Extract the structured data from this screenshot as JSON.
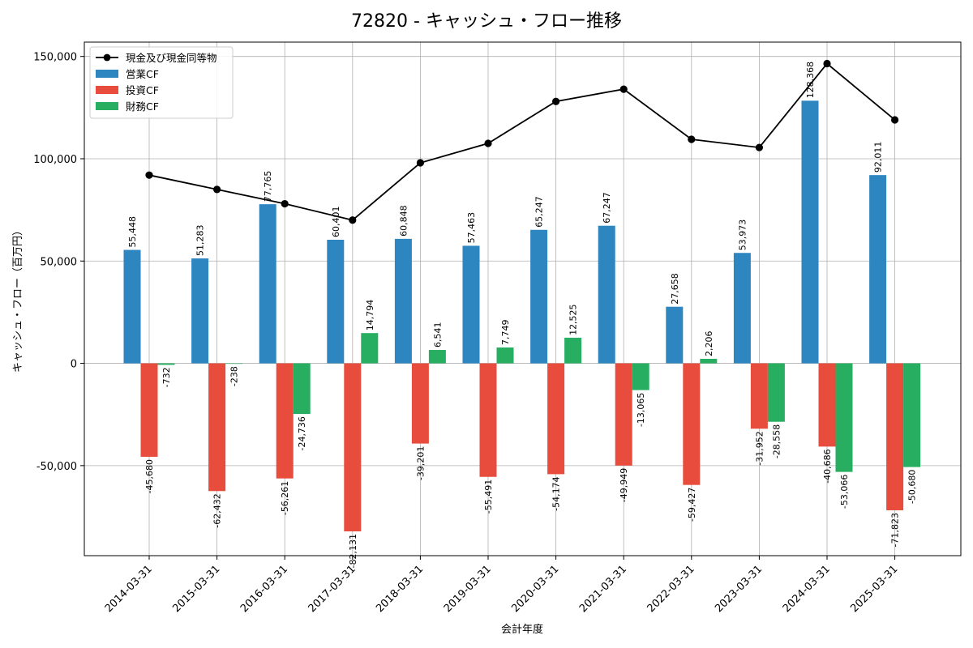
{
  "chart_data": {
    "type": "bar",
    "title": "72820 - キャッシュ・フロー推移",
    "xlabel": "会計年度",
    "ylabel": "キャッシュ・フロー（百万円）",
    "ylim": [
      -94000,
      157000
    ],
    "yticks": [
      -50000,
      0,
      50000,
      100000,
      150000
    ],
    "ytick_labels": [
      "-50,000",
      "0",
      "50,000",
      "100,000",
      "150,000"
    ],
    "grid": true,
    "legend_position": "top-left",
    "categories": [
      "2014-03-31",
      "2015-03-31",
      "2016-03-31",
      "2017-03-31",
      "2018-03-31",
      "2019-03-31",
      "2020-03-31",
      "2021-03-31",
      "2022-03-31",
      "2023-03-31",
      "2024-03-31",
      "2025-03-31"
    ],
    "series": [
      {
        "name": "営業CF",
        "kind": "bar",
        "color": "#2e86c1",
        "values": [
          55448,
          51283,
          77765,
          60401,
          60848,
          57463,
          65247,
          67247,
          27658,
          53973,
          128368,
          92011
        ],
        "labels": [
          "55,448",
          "51,283",
          "77,765",
          "60,401",
          "60,848",
          "57,463",
          "65,247",
          "67,247",
          "27,658",
          "53,973",
          "128,368",
          "92,011"
        ]
      },
      {
        "name": "投資CF",
        "kind": "bar",
        "color": "#e74c3c",
        "values": [
          -45680,
          -62432,
          -56261,
          -82131,
          -39201,
          -55491,
          -54174,
          -49949,
          -59427,
          -31952,
          -40686,
          -71823
        ],
        "labels": [
          "-45,680",
          "-62,432",
          "-56,261",
          "-82,131",
          "-39,201",
          "-55,491",
          "-54,174",
          "-49,949",
          "-59,427",
          "-31,952",
          "-40,686",
          "-71,823"
        ]
      },
      {
        "name": "財務CF",
        "kind": "bar",
        "color": "#27ae60",
        "values": [
          -732,
          -238,
          -24736,
          14794,
          6541,
          7749,
          12525,
          -13065,
          2206,
          -28558,
          -53066,
          -50680
        ],
        "labels": [
          "-732",
          "-238",
          "-24,736",
          "14,794",
          "6,541",
          "7,749",
          "12,525",
          "-13,065",
          "2,206",
          "-28,558",
          "-53,066",
          "-50,680"
        ]
      },
      {
        "name": "現金及び現金同等物",
        "kind": "line",
        "color": "#000000",
        "values": [
          92000,
          85000,
          78000,
          70000,
          98000,
          107500,
          128000,
          134000,
          109500,
          105500,
          146500,
          119000
        ]
      }
    ],
    "legend_order": [
      3,
      0,
      1,
      2
    ]
  }
}
